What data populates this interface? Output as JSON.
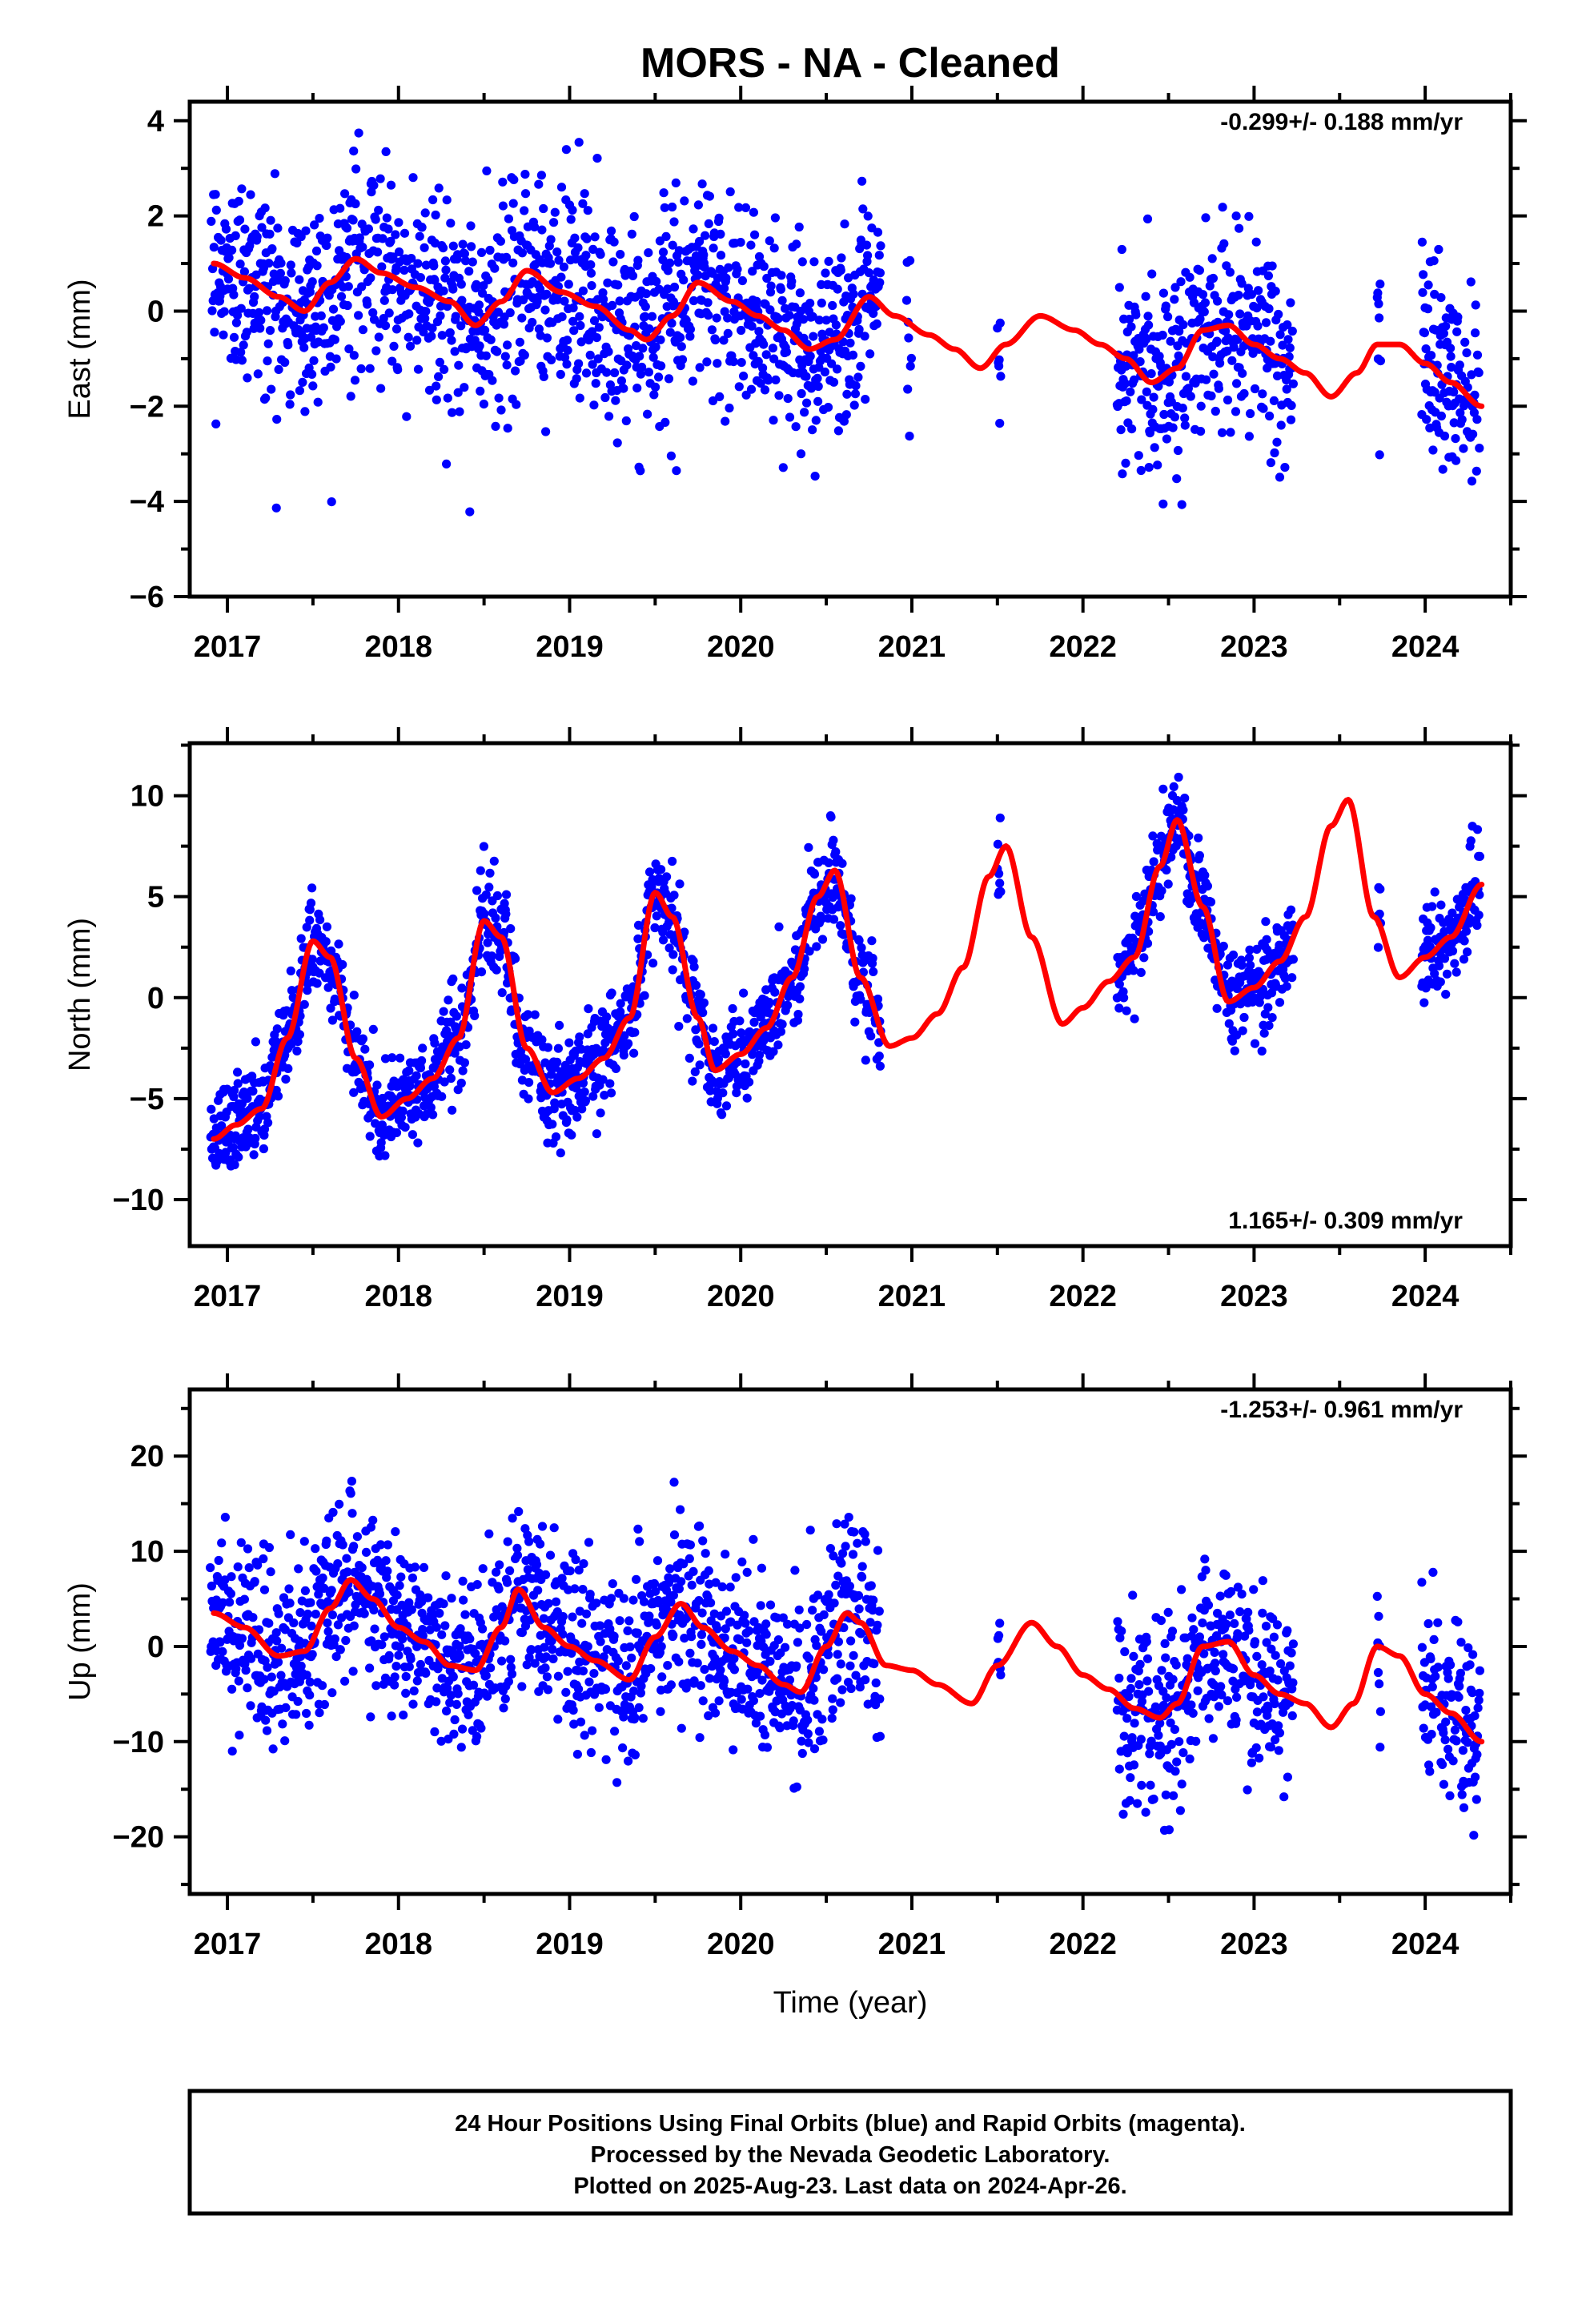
{
  "title": "MORS  - NA - Cleaned",
  "xlabel": "Time (year)",
  "footer": {
    "lines": [
      "24 Hour Positions Using Final Orbits (blue) and Rapid Orbits (magenta).",
      "Processed by the Nevada Geodetic Laboratory.",
      "Plotted on 2025-Aug-23. Last data on 2024-Apr-26."
    ]
  },
  "colors": {
    "points": "#0000ff",
    "model": "#ff0000",
    "axes": "#000000"
  },
  "chart_data": [
    {
      "type": "scatter",
      "ylabel": "East (mm)",
      "rate_text": "-0.299+/- 0.188 mm/yr",
      "rate_position": "top-right",
      "xlim": [
        2016.78,
        2024.5
      ],
      "ylim": [
        -6,
        4.4
      ],
      "yticks": [
        4,
        2,
        0,
        -2,
        -4,
        -6
      ],
      "xticks": [
        2017,
        2018,
        2019,
        2020,
        2021,
        2022,
        2023,
        2024
      ],
      "xtick_labels": [
        "2017",
        "2018",
        "2019",
        "2020",
        "2021",
        "2022",
        "2023",
        "2024"
      ],
      "grid": false,
      "data_spans": [
        [
          2016.9,
          2020.82
        ],
        [
          2020.97,
          2021.0
        ],
        [
          2021.5,
          2021.52
        ],
        [
          2022.2,
          2023.23
        ],
        [
          2023.72,
          2023.74
        ],
        [
          2023.98,
          2024.32
        ]
      ],
      "scatter_summary": {
        "approx_points": 1980,
        "spread_sd_mm": 1.1
      },
      "series": [
        {
          "role": "model_fit",
          "x": [
            2016.92,
            2017.1,
            2017.3,
            2017.45,
            2017.6,
            2017.75,
            2017.9,
            2018.1,
            2018.3,
            2018.45,
            2018.6,
            2018.75,
            2018.95,
            2019.15,
            2019.35,
            2019.45,
            2019.6,
            2019.75,
            2019.95,
            2020.1,
            2020.25,
            2020.4,
            2020.55,
            2020.75,
            2020.9,
            2021.1,
            2021.25,
            2021.4,
            2021.55,
            2021.75,
            2021.95,
            2022.1,
            2022.25,
            2022.4,
            2022.55,
            2022.7,
            2022.85,
            2023.0,
            2023.15,
            2023.3,
            2023.45,
            2023.6,
            2023.72,
            2023.85,
            2024.0,
            2024.15,
            2024.33
          ],
          "y": [
            1.0,
            0.7,
            0.3,
            0.0,
            0.6,
            1.1,
            0.8,
            0.5,
            0.2,
            -0.3,
            0.2,
            0.85,
            0.4,
            0.1,
            -0.4,
            -0.6,
            -0.1,
            0.6,
            0.2,
            -0.1,
            -0.4,
            -0.8,
            -0.6,
            0.3,
            -0.1,
            -0.5,
            -0.8,
            -1.2,
            -0.7,
            -0.1,
            -0.4,
            -0.7,
            -1.0,
            -1.5,
            -1.2,
            -0.4,
            -0.3,
            -0.7,
            -1.0,
            -1.3,
            -1.8,
            -1.3,
            -0.7,
            -0.7,
            -1.1,
            -1.5,
            -2.0
          ]
        }
      ]
    },
    {
      "type": "scatter",
      "ylabel": "North (mm)",
      "rate_text": "1.165+/- 0.309 mm/yr",
      "rate_position": "bottom-right",
      "xlim": [
        2016.78,
        2024.5
      ],
      "ylim": [
        -12.3,
        12.6
      ],
      "yticks": [
        10,
        5,
        0,
        -5,
        -10
      ],
      "xticks": [
        2017,
        2018,
        2019,
        2020,
        2021,
        2022,
        2023,
        2024
      ],
      "xtick_labels": [
        "2017",
        "2018",
        "2019",
        "2020",
        "2021",
        "2022",
        "2023",
        "2024"
      ],
      "grid": false,
      "data_spans": [
        [
          2016.9,
          2020.82
        ],
        [
          2021.5,
          2021.52
        ],
        [
          2022.2,
          2023.23
        ],
        [
          2023.72,
          2023.74
        ],
        [
          2023.98,
          2024.32
        ]
      ],
      "scatter_summary": {
        "approx_points": 1980,
        "spread_sd_mm": 1.2
      },
      "series": [
        {
          "role": "model_fit",
          "x": [
            2016.92,
            2017.05,
            2017.2,
            2017.35,
            2017.5,
            2017.6,
            2017.75,
            2017.9,
            2018.05,
            2018.2,
            2018.35,
            2018.5,
            2018.6,
            2018.75,
            2018.9,
            2019.05,
            2019.2,
            2019.35,
            2019.5,
            2019.6,
            2019.75,
            2019.85,
            2020.0,
            2020.15,
            2020.3,
            2020.45,
            2020.55,
            2020.7,
            2020.87,
            2021.0,
            2021.15,
            2021.3,
            2021.45,
            2021.55,
            2021.7,
            2021.88,
            2022.0,
            2022.15,
            2022.3,
            2022.45,
            2022.55,
            2022.7,
            2022.85,
            2023.0,
            2023.15,
            2023.3,
            2023.45,
            2023.55,
            2023.7,
            2023.85,
            2024.0,
            2024.15,
            2024.33
          ],
          "y": [
            -7.0,
            -6.3,
            -5.5,
            -2.0,
            2.8,
            2.0,
            -3.0,
            -5.9,
            -5.0,
            -4.0,
            -2.0,
            3.8,
            3.0,
            -2.5,
            -4.7,
            -4.0,
            -3.0,
            -1.0,
            5.2,
            4.0,
            -1.0,
            -3.6,
            -2.8,
            -1.5,
            1.0,
            5.0,
            6.3,
            1.0,
            -2.4,
            -2.0,
            -0.8,
            1.5,
            6.0,
            7.5,
            3.0,
            -1.3,
            -0.5,
            0.8,
            2.0,
            6.5,
            8.8,
            4.5,
            -0.2,
            0.5,
            1.8,
            4.0,
            8.5,
            9.8,
            4.0,
            1.0,
            2.0,
            3.0,
            5.6
          ]
        }
      ]
    },
    {
      "type": "scatter",
      "ylabel": "Up (mm)",
      "rate_text": "-1.253+/- 0.961 mm/yr",
      "rate_position": "top-right",
      "xlim": [
        2016.78,
        2024.5
      ],
      "ylim": [
        -26,
        27
      ],
      "yticks": [
        20,
        10,
        0,
        -10,
        -20
      ],
      "xticks": [
        2017,
        2018,
        2019,
        2020,
        2021,
        2022,
        2023,
        2024
      ],
      "xtick_labels": [
        "2017",
        "2018",
        "2019",
        "2020",
        "2021",
        "2022",
        "2023",
        "2024"
      ],
      "grid": false,
      "data_spans": [
        [
          2016.9,
          2020.82
        ],
        [
          2021.5,
          2021.52
        ],
        [
          2022.2,
          2023.23
        ],
        [
          2023.72,
          2023.74
        ],
        [
          2023.98,
          2024.32
        ]
      ],
      "scatter_summary": {
        "approx_points": 1980,
        "spread_sd_mm": 4.8
      },
      "series": [
        {
          "role": "model_fit",
          "x": [
            2016.92,
            2017.1,
            2017.3,
            2017.45,
            2017.6,
            2017.72,
            2017.85,
            2018.0,
            2018.15,
            2018.3,
            2018.45,
            2018.6,
            2018.7,
            2018.85,
            2019.0,
            2019.15,
            2019.35,
            2019.5,
            2019.65,
            2019.78,
            2019.95,
            2020.1,
            2020.25,
            2020.35,
            2020.5,
            2020.62,
            2020.7,
            2020.85,
            2021.0,
            2021.15,
            2021.35,
            2021.5,
            2021.7,
            2021.85,
            2022.0,
            2022.15,
            2022.3,
            2022.45,
            2022.55,
            2022.7,
            2022.85,
            2023.0,
            2023.15,
            2023.3,
            2023.45,
            2023.58,
            2023.72,
            2023.85,
            2024.0,
            2024.15,
            2024.33
          ],
          "y": [
            3.5,
            2.0,
            -1.0,
            -0.5,
            4.0,
            7.0,
            5.0,
            2.0,
            0.5,
            -2.0,
            -2.5,
            2.0,
            6.0,
            2.0,
            0.0,
            -1.5,
            -3.5,
            1.0,
            4.5,
            2.0,
            -0.5,
            -2.0,
            -4.0,
            -4.8,
            0.0,
            3.5,
            2.5,
            -2.0,
            -2.5,
            -4.0,
            -6.0,
            -2.0,
            2.5,
            0.0,
            -3.0,
            -4.5,
            -6.5,
            -7.5,
            -6.0,
            0.0,
            0.5,
            -3.0,
            -5.0,
            -6.0,
            -8.5,
            -6.0,
            0.0,
            -1.0,
            -5.0,
            -7.0,
            -10.0
          ]
        }
      ]
    }
  ]
}
